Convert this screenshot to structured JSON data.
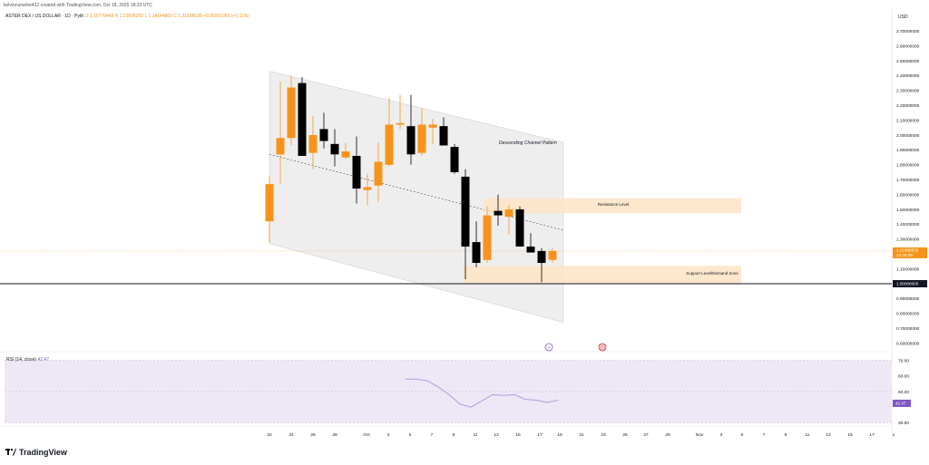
{
  "header": {
    "created_by": "kelvinnuneme422 created with TradingView.com, Oct 18, 2025 18:33 UTC",
    "symbol": "ASTER DEX / US DOLLAR · 1D · Pyth",
    "open": "O 1.15779448",
    "high": "H 1.23835352",
    "low": "L 1.14144860",
    "close": "C 1.21698538",
    "change": "+0.05931069 (+5.11%)",
    "currency": "USD"
  },
  "colors": {
    "up": "#f7931a",
    "down": "#000000",
    "channel_fill": "#e8e8ea",
    "zone_fill": "#fde3c4",
    "rsi": "#b39ddb",
    "rsi_band": "#ede7f6",
    "price_tag": "#f7931a"
  },
  "annotations": {
    "channel": "Descending Channel Pattern",
    "resistance": "Resistance Level",
    "support": "Support Level/Demand Zone"
  },
  "price_tag": {
    "value": "1.21698538",
    "countdown": "13:26:06"
  },
  "support_tag": "1.00000000",
  "rsi": {
    "label": "RSI (14, close)",
    "value_label": "42.47",
    "ticks": [
      "70.00",
      "60.00",
      "50.00",
      "40.00",
      "30.00"
    ],
    "values": [
      58,
      58,
      57,
      53,
      48,
      42,
      40,
      44,
      48,
      47.5,
      48,
      45,
      44.5,
      43,
      44.5
    ]
  },
  "brand": "TradingView",
  "chart_data": {
    "type": "candlestick",
    "y_ticks": [
      "2.70000000",
      "2.60000000",
      "2.50000000",
      "2.40000000",
      "2.30000000",
      "2.20000000",
      "2.10000000",
      "2.00000000",
      "1.90000000",
      "1.80000000",
      "1.70000000",
      "1.60000000",
      "1.50000000",
      "1.40000000",
      "1.30000000",
      "1.20000000",
      "1.10000000",
      "1.00000000",
      "0.90000000",
      "0.80000000",
      "0.70000000",
      "0.60000000"
    ],
    "x_ticks": [
      "22",
      "24",
      "26",
      "28",
      "Oct",
      "3",
      "5",
      "7",
      "9",
      "11",
      "13",
      "15",
      "17",
      "19",
      "21",
      "23",
      "25",
      "27",
      "29",
      "Nov",
      "3",
      "5",
      "7",
      "9",
      "11",
      "13",
      "15",
      "17",
      "1"
    ],
    "ylim": [
      0.55,
      2.78
    ],
    "candles": [
      {
        "o": 1.42,
        "h": 1.72,
        "l": 1.28,
        "c": 1.67
      },
      {
        "o": 1.87,
        "h": 2.36,
        "l": 1.67,
        "c": 1.98
      },
      {
        "o": 1.98,
        "h": 2.4,
        "l": 1.93,
        "c": 2.32
      },
      {
        "o": 2.35,
        "h": 2.39,
        "l": 1.86,
        "c": 1.86
      },
      {
        "o": 1.88,
        "h": 2.13,
        "l": 1.77,
        "c": 2.0
      },
      {
        "o": 2.04,
        "h": 2.15,
        "l": 1.91,
        "c": 1.96
      },
      {
        "o": 1.94,
        "h": 2.04,
        "l": 1.79,
        "c": 1.87
      },
      {
        "o": 1.85,
        "h": 1.95,
        "l": 1.84,
        "c": 1.89
      },
      {
        "o": 1.86,
        "h": 1.99,
        "l": 1.54,
        "c": 1.64
      },
      {
        "o": 1.63,
        "h": 1.74,
        "l": 1.53,
        "c": 1.65
      },
      {
        "o": 1.66,
        "h": 1.95,
        "l": 1.55,
        "c": 1.82
      },
      {
        "o": 1.8,
        "h": 2.25,
        "l": 1.79,
        "c": 2.07
      },
      {
        "o": 2.07,
        "h": 2.27,
        "l": 2.04,
        "c": 2.08
      },
      {
        "o": 2.06,
        "h": 2.27,
        "l": 1.8,
        "c": 1.87
      },
      {
        "o": 1.88,
        "h": 2.18,
        "l": 1.86,
        "c": 2.07
      },
      {
        "o": 2.05,
        "h": 2.11,
        "l": 1.94,
        "c": 2.07
      },
      {
        "o": 2.06,
        "h": 2.12,
        "l": 1.93,
        "c": 1.93
      },
      {
        "o": 1.92,
        "h": 1.94,
        "l": 1.74,
        "c": 1.75
      },
      {
        "o": 1.72,
        "h": 1.77,
        "l": 1.03,
        "c": 1.25
      },
      {
        "o": 1.28,
        "h": 1.42,
        "l": 1.11,
        "c": 1.14
      },
      {
        "o": 1.16,
        "h": 1.52,
        "l": 1.14,
        "c": 1.46
      },
      {
        "o": 1.49,
        "h": 1.6,
        "l": 1.39,
        "c": 1.46
      },
      {
        "o": 1.45,
        "h": 1.53,
        "l": 1.33,
        "c": 1.5
      },
      {
        "o": 1.5,
        "h": 1.52,
        "l": 1.25,
        "c": 1.25
      },
      {
        "o": 1.25,
        "h": 1.34,
        "l": 1.22,
        "c": 1.21
      },
      {
        "o": 1.22,
        "h": 1.24,
        "l": 1.01,
        "c": 1.14
      },
      {
        "o": 1.16,
        "h": 1.24,
        "l": 1.14,
        "c": 1.22
      }
    ],
    "channel": {
      "upper": [
        [
          0,
          2.43
        ],
        [
          27,
          1.95
        ]
      ],
      "lower": [
        [
          0,
          1.27
        ],
        [
          27,
          0.74
        ]
      ],
      "mid": [
        [
          0,
          1.87
        ],
        [
          27,
          1.36
        ]
      ]
    },
    "resistance_zone": [
      1.475,
      1.575
    ],
    "support_zone": [
      1.0,
      1.12
    ],
    "support_line": 1.0
  }
}
